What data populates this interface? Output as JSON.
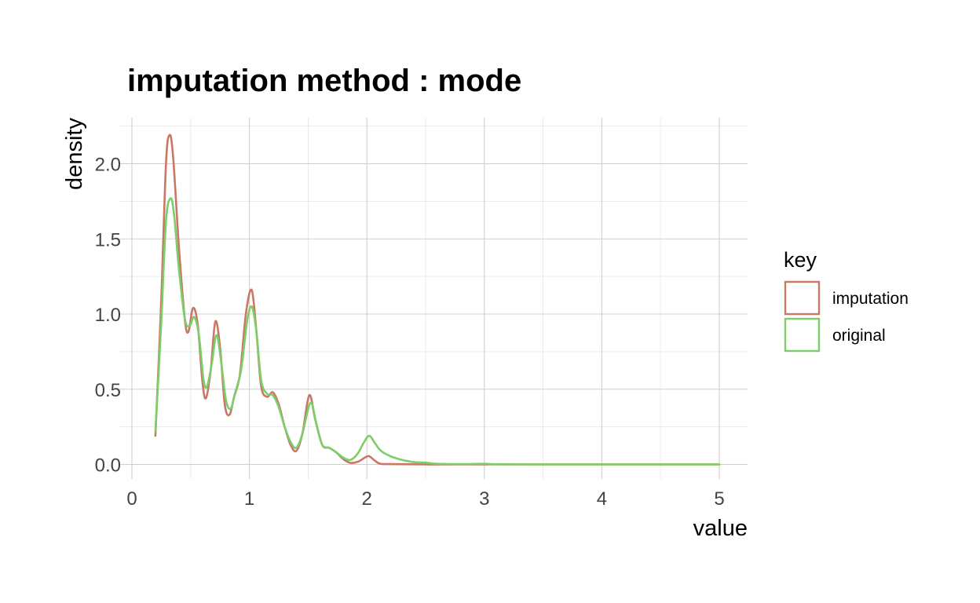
{
  "chart_data": {
    "type": "line",
    "title": "imputation method : mode",
    "xlabel": "value",
    "ylabel": "density",
    "xlim": [
      0,
      5.25
    ],
    "ylim": [
      -0.1,
      2.3
    ],
    "x_ticks": [
      0,
      1,
      2,
      3,
      4,
      5
    ],
    "x_tick_labels": [
      "0",
      "1",
      "2",
      "3",
      "4",
      "5"
    ],
    "y_ticks": [
      0.0,
      0.5,
      1.0,
      1.5,
      2.0
    ],
    "y_tick_labels": [
      "0.0",
      "0.5",
      "1.0",
      "1.5",
      "2.0"
    ],
    "grid": true,
    "legend": {
      "title": "key",
      "position": "right"
    },
    "series": [
      {
        "name": "imputation",
        "color": "#c97767",
        "points": [
          [
            0.2,
            0.19
          ],
          [
            0.25,
            1.1
          ],
          [
            0.29,
            2.0
          ],
          [
            0.32,
            2.19
          ],
          [
            0.35,
            2.05
          ],
          [
            0.4,
            1.45
          ],
          [
            0.45,
            0.97
          ],
          [
            0.48,
            0.88
          ],
          [
            0.52,
            1.04
          ],
          [
            0.56,
            0.93
          ],
          [
            0.6,
            0.55
          ],
          [
            0.63,
            0.44
          ],
          [
            0.67,
            0.62
          ],
          [
            0.71,
            0.95
          ],
          [
            0.75,
            0.78
          ],
          [
            0.79,
            0.4
          ],
          [
            0.83,
            0.33
          ],
          [
            0.87,
            0.45
          ],
          [
            0.92,
            0.6
          ],
          [
            0.97,
            1.0
          ],
          [
            1.02,
            1.16
          ],
          [
            1.06,
            0.88
          ],
          [
            1.1,
            0.52
          ],
          [
            1.15,
            0.45
          ],
          [
            1.2,
            0.48
          ],
          [
            1.25,
            0.4
          ],
          [
            1.3,
            0.25
          ],
          [
            1.35,
            0.13
          ],
          [
            1.4,
            0.09
          ],
          [
            1.45,
            0.2
          ],
          [
            1.51,
            0.46
          ],
          [
            1.56,
            0.3
          ],
          [
            1.62,
            0.13
          ],
          [
            1.68,
            0.11
          ],
          [
            1.74,
            0.08
          ],
          [
            1.8,
            0.035
          ],
          [
            1.86,
            0.01
          ],
          [
            1.93,
            0.02
          ],
          [
            2.01,
            0.055
          ],
          [
            2.06,
            0.03
          ],
          [
            2.11,
            0.005
          ],
          [
            2.2,
            0.002
          ],
          [
            2.5,
            0.0
          ],
          [
            3.0,
            0.0
          ],
          [
            4.0,
            0.0
          ],
          [
            5.0,
            0.0
          ]
        ]
      },
      {
        "name": "original",
        "color": "#7cce68",
        "points": [
          [
            0.2,
            0.22
          ],
          [
            0.25,
            0.95
          ],
          [
            0.29,
            1.62
          ],
          [
            0.33,
            1.77
          ],
          [
            0.36,
            1.65
          ],
          [
            0.4,
            1.3
          ],
          [
            0.45,
            0.97
          ],
          [
            0.49,
            0.92
          ],
          [
            0.53,
            0.98
          ],
          [
            0.57,
            0.86
          ],
          [
            0.61,
            0.56
          ],
          [
            0.64,
            0.52
          ],
          [
            0.68,
            0.67
          ],
          [
            0.72,
            0.86
          ],
          [
            0.76,
            0.68
          ],
          [
            0.8,
            0.43
          ],
          [
            0.84,
            0.37
          ],
          [
            0.88,
            0.48
          ],
          [
            0.93,
            0.63
          ],
          [
            0.98,
            0.95
          ],
          [
            1.02,
            1.05
          ],
          [
            1.06,
            0.88
          ],
          [
            1.1,
            0.56
          ],
          [
            1.15,
            0.47
          ],
          [
            1.2,
            0.46
          ],
          [
            1.25,
            0.38
          ],
          [
            1.3,
            0.25
          ],
          [
            1.35,
            0.15
          ],
          [
            1.4,
            0.11
          ],
          [
            1.45,
            0.2
          ],
          [
            1.52,
            0.41
          ],
          [
            1.57,
            0.27
          ],
          [
            1.62,
            0.13
          ],
          [
            1.68,
            0.11
          ],
          [
            1.74,
            0.08
          ],
          [
            1.8,
            0.045
          ],
          [
            1.86,
            0.03
          ],
          [
            1.92,
            0.07
          ],
          [
            1.97,
            0.14
          ],
          [
            2.02,
            0.19
          ],
          [
            2.07,
            0.14
          ],
          [
            2.12,
            0.09
          ],
          [
            2.2,
            0.055
          ],
          [
            2.3,
            0.03
          ],
          [
            2.4,
            0.015
          ],
          [
            2.5,
            0.012
          ],
          [
            2.6,
            0.004
          ],
          [
            2.8,
            0.002
          ],
          [
            3.0,
            0.004
          ],
          [
            3.1,
            0.001
          ],
          [
            3.5,
            0.0
          ],
          [
            4.0,
            0.0
          ],
          [
            5.0,
            0.0
          ]
        ]
      }
    ]
  }
}
